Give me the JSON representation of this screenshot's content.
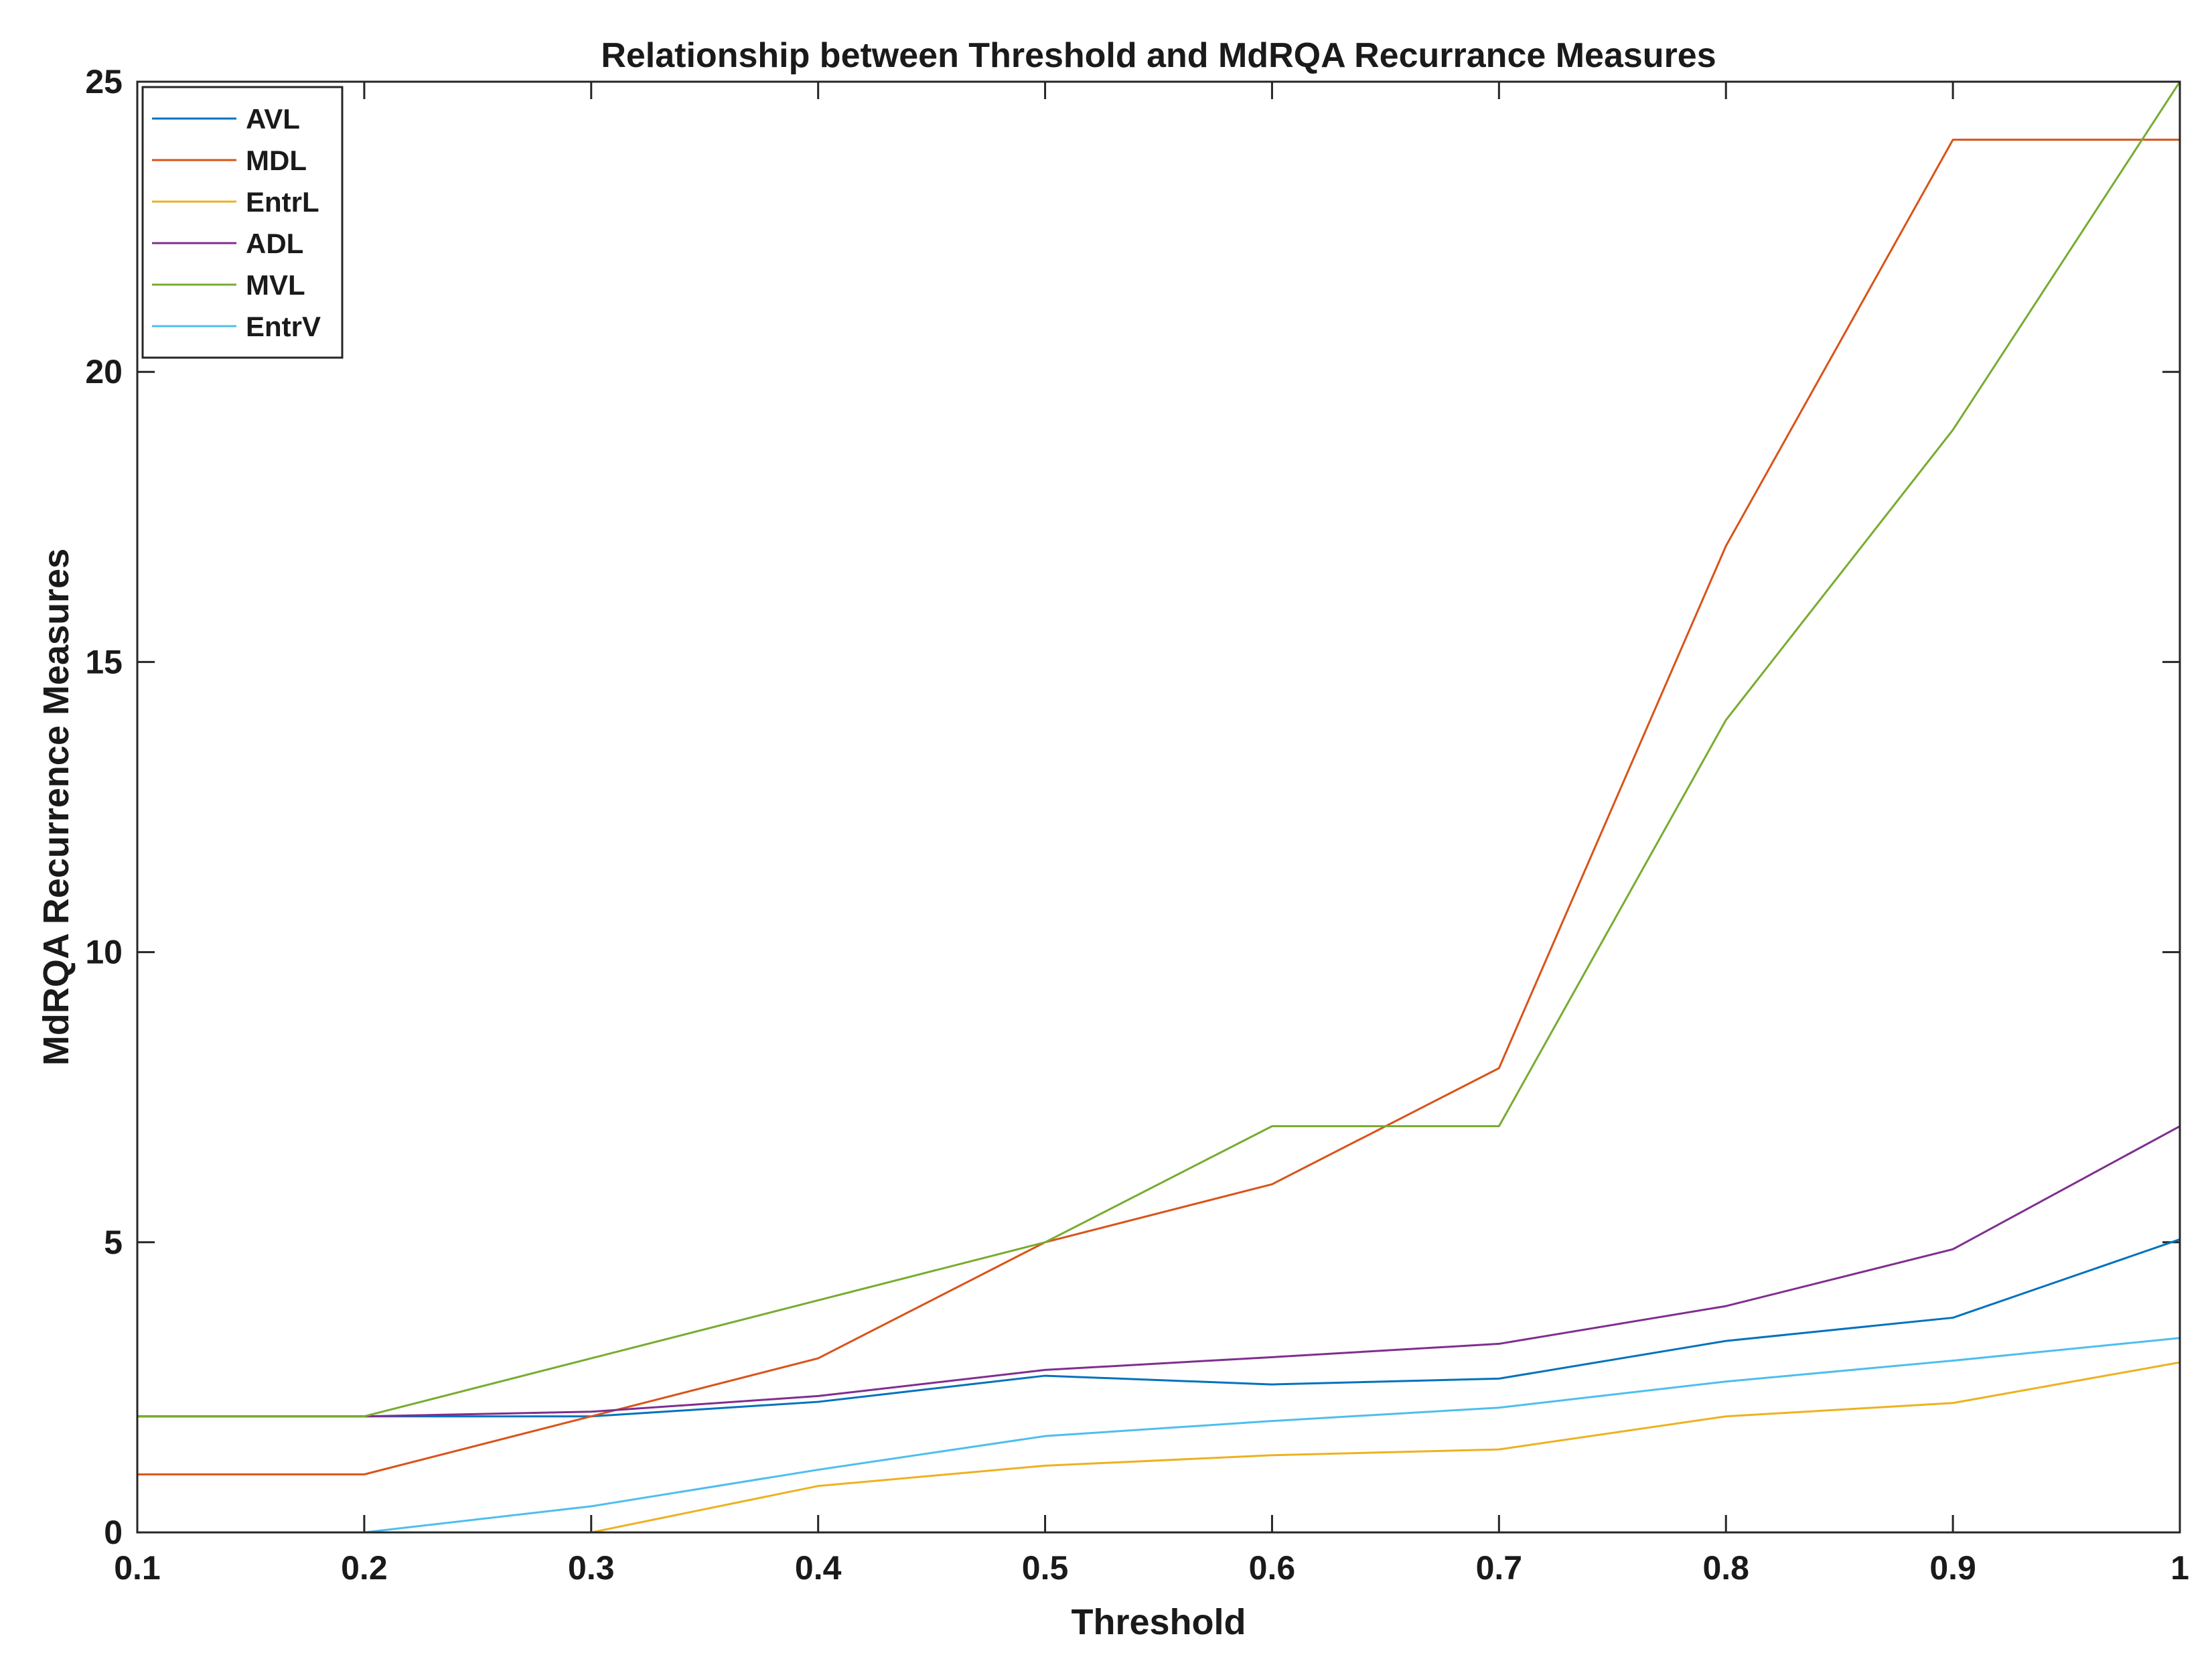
{
  "chart_data": {
    "type": "line",
    "title": "Relationship between Threshold and MdRQA Recurrance Measures",
    "xlabel": "Threshold",
    "ylabel": "MdRQA Recurrence Measures",
    "xlim": [
      0.1,
      1
    ],
    "ylim": [
      0,
      25
    ],
    "xticks": [
      0.1,
      0.2,
      0.3,
      0.4,
      0.5,
      0.6,
      0.7,
      0.8,
      0.9,
      1
    ],
    "xtick_labels": [
      "0.1",
      "0.2",
      "0.3",
      "0.4",
      "0.5",
      "0.6",
      "0.7",
      "0.8",
      "0.9",
      "1"
    ],
    "yticks": [
      0,
      5,
      10,
      15,
      20,
      25
    ],
    "ytick_labels": [
      "0",
      "5",
      "10",
      "15",
      "20",
      "25"
    ],
    "grid": false,
    "legend_position": "top-left",
    "x": [
      0.1,
      0.2,
      0.3,
      0.4,
      0.5,
      0.6,
      0.7,
      0.8,
      0.9,
      1
    ],
    "series": [
      {
        "name": "AVL",
        "color": "#0072BD",
        "values": [
          2,
          2,
          2,
          2.25,
          2.7,
          2.55,
          2.65,
          3.3,
          3.7,
          5.05
        ]
      },
      {
        "name": "MDL",
        "color": "#D95319",
        "values": [
          1,
          1,
          2,
          3,
          5,
          6,
          8,
          17,
          24,
          24
        ]
      },
      {
        "name": "EntrL",
        "color": "#EDB120",
        "values": [
          0,
          0,
          0,
          0.8,
          1.15,
          1.33,
          1.43,
          2.0,
          2.23,
          2.93
        ]
      },
      {
        "name": "ADL",
        "color": "#7E2F8E",
        "values": [
          2,
          2,
          2.08,
          2.35,
          2.8,
          3.02,
          3.25,
          3.9,
          4.88,
          7
        ]
      },
      {
        "name": "MVL",
        "color": "#77AC30",
        "values": [
          2,
          2,
          3,
          4,
          5,
          7,
          7,
          14,
          19,
          25
        ]
      },
      {
        "name": "EntrV",
        "color": "#4DBEEE",
        "values": [
          0,
          0,
          0.45,
          1.08,
          1.66,
          1.92,
          2.15,
          2.6,
          2.96,
          3.35
        ]
      }
    ]
  }
}
